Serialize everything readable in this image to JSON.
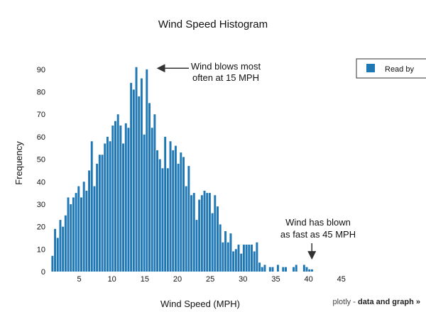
{
  "chart_data": {
    "type": "bar",
    "title": "Wind Speed Histogram",
    "xlabel": "Wind Speed (MPH)",
    "ylabel": "Frequency",
    "xlim": [
      0.5,
      46
    ],
    "ylim": [
      0,
      95
    ],
    "xticks": [
      5,
      10,
      15,
      20,
      25,
      30,
      35,
      40,
      45
    ],
    "yticks": [
      0,
      10,
      20,
      30,
      40,
      50,
      60,
      70,
      80,
      90
    ],
    "bar_width": 0.32,
    "grid": false,
    "legend": {
      "position": "top-right",
      "entries": [
        "Read by"
      ]
    },
    "series": [
      {
        "name": "Read by",
        "color": "#1f77b4",
        "x": [
          0.92,
          1.32,
          1.72,
          2.12,
          2.52,
          2.92,
          3.32,
          3.72,
          4.12,
          4.52,
          4.92,
          5.32,
          5.72,
          6.12,
          6.52,
          6.92,
          7.32,
          7.72,
          8.12,
          8.52,
          8.92,
          9.32,
          9.72,
          10.12,
          10.52,
          10.92,
          11.32,
          11.72,
          12.12,
          12.52,
          12.92,
          13.32,
          13.72,
          14.12,
          14.52,
          14.92,
          15.32,
          15.72,
          16.12,
          16.52,
          16.92,
          17.32,
          17.72,
          18.12,
          18.52,
          18.92,
          19.32,
          19.72,
          20.12,
          20.52,
          20.92,
          21.32,
          21.72,
          22.12,
          22.52,
          22.92,
          23.32,
          23.72,
          24.12,
          24.52,
          24.92,
          25.32,
          25.72,
          26.12,
          26.52,
          26.92,
          27.32,
          27.72,
          28.12,
          28.52,
          28.92,
          29.32,
          29.72,
          30.12,
          30.52,
          30.92,
          31.32,
          31.72,
          32.12,
          32.52,
          32.92,
          33.32,
          33.72,
          34.12,
          34.52,
          34.92,
          35.32,
          35.72,
          36.12,
          36.52,
          36.92,
          37.32,
          37.72,
          38.12,
          38.52,
          38.92,
          39.32,
          39.72,
          40.12,
          40.52,
          40.92,
          41.32,
          41.72
        ],
        "values": [
          7,
          19,
          15,
          23,
          20,
          25,
          33,
          30,
          33,
          35,
          38,
          33,
          40,
          36,
          45,
          58,
          38,
          48,
          52,
          52,
          57,
          60,
          58,
          65,
          67,
          70,
          65,
          57,
          66,
          64,
          84,
          81,
          91,
          78,
          86,
          61,
          90,
          75,
          64,
          70,
          54,
          50,
          46,
          60,
          46,
          58,
          54,
          56,
          48,
          53,
          51,
          38,
          47,
          34,
          35,
          23,
          32,
          34,
          36,
          35,
          35,
          26,
          34,
          29,
          21,
          13,
          18,
          13,
          17,
          9,
          10,
          12,
          8,
          12,
          12,
          12,
          12,
          9,
          13,
          4,
          2,
          3,
          0,
          2,
          2,
          0,
          3,
          0,
          2,
          2,
          0,
          0,
          2,
          3,
          0,
          0,
          3,
          2,
          1,
          1,
          0,
          0,
          0
        ]
      }
    ],
    "annotations": [
      {
        "lines": [
          "Wind blows most",
          "often at 15 MPH"
        ],
        "points_to": [
          16.5,
          90.5
        ]
      },
      {
        "lines": [
          "Wind has blown",
          "as fast as 45 MPH"
        ],
        "points_to": [
          40.5,
          5
        ]
      }
    ]
  },
  "footer": {
    "prefix": "plotly - ",
    "link": "data and graph »"
  }
}
